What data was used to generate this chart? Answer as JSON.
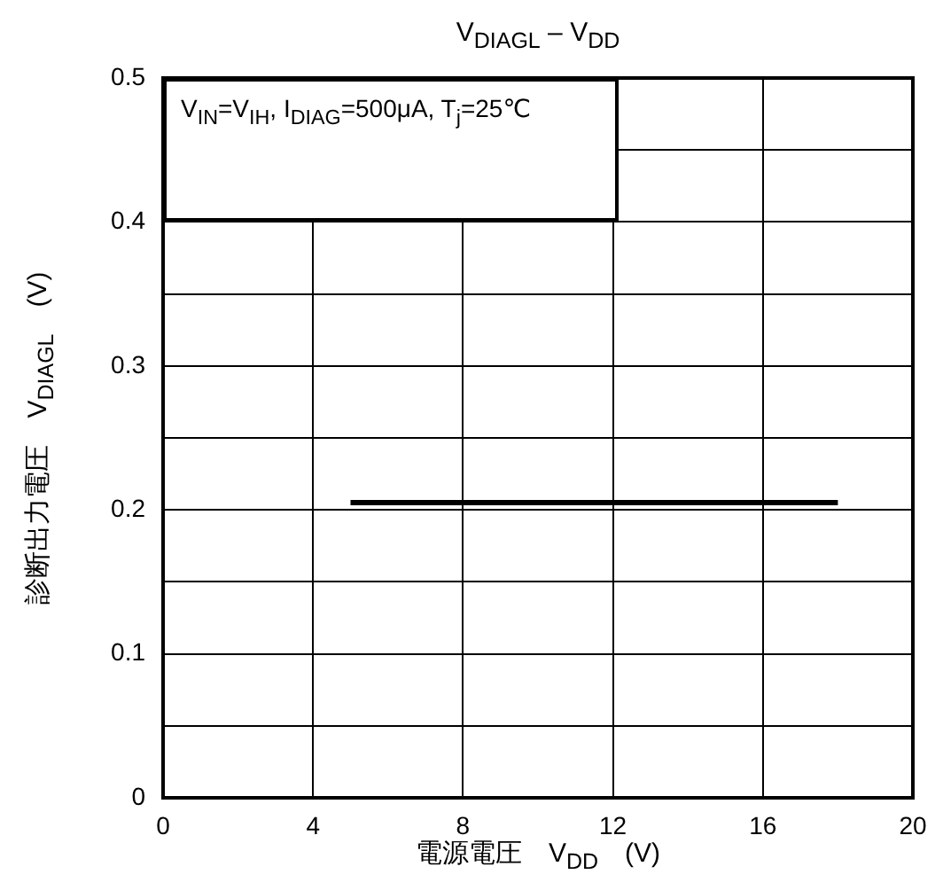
{
  "chart_data": {
    "type": "line",
    "title": "V$_{DIAGL}$ – V$_{DD}$",
    "xlabel": "電源電圧　V$_{DD}$　(V)",
    "ylabel": "診断出力電圧　V$_{DIAGL}$　(V)",
    "annotations": [
      "V$_{IN}$=V$_{IH}$,  I$_{DIAG}$=500μA, T$_{j}$=25℃"
    ],
    "series": [
      {
        "color": "#000000",
        "x": [
          5,
          18
        ],
        "values": [
          0.205,
          0.205
        ]
      }
    ],
    "xlim": [
      0,
      20
    ],
    "xticks": [
      0,
      4,
      8,
      12,
      16,
      20
    ],
    "ylim": [
      0,
      0.5
    ],
    "yticks": [
      0,
      {
        "value": 0.05,
        "label": null
      },
      0.1,
      {
        "value": 0.15,
        "label": null
      },
      0.2,
      {
        "value": 0.25,
        "label": null
      },
      0.3,
      {
        "value": 0.35,
        "label": null
      },
      0.4,
      {
        "value": 0.45,
        "label": null
      },
      0.5
    ],
    "grid": true,
    "legend": false,
    "marker": "none",
    "line_style": "solid"
  }
}
